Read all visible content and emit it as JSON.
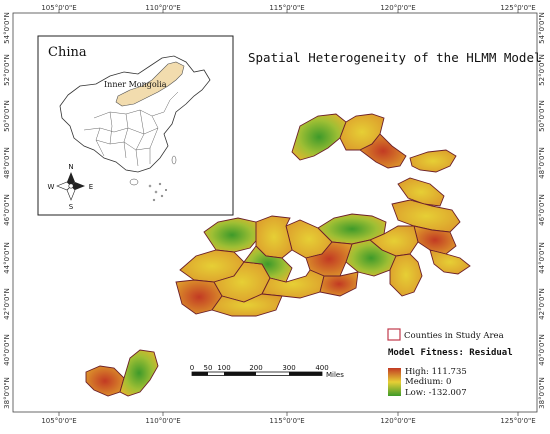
{
  "map": {
    "title": "Spatial Heterogeneity of the HLMM Model",
    "lon_ticks": [
      "105°0'0\"E",
      "110°0'0\"E",
      "115°0'0\"E",
      "120°0'0\"E",
      "125°0'0\"E"
    ],
    "lat_ticks": [
      "54°0'0\"N",
      "52°0'0\"N",
      "50°0'0\"N",
      "48°0'0\"N",
      "46°0'0\"N",
      "44°0'0\"N",
      "42°0'0\"N",
      "40°0'0\"N",
      "38°0'0\"N"
    ]
  },
  "inset": {
    "title": "China",
    "region_label": "Inner Mongolia",
    "highlight_color": "#f2dcae",
    "north_arrow": {
      "n": "N",
      "s": "S",
      "e": "E",
      "w": "W"
    }
  },
  "legend": {
    "counties_label": "Counties in Study Area",
    "fitness_title": "Model Fitness: Residual",
    "high_label": "High: 111.735",
    "medium_label": "Medium: 0",
    "low_label": "Low: -132.007",
    "colors": {
      "high": "#c23a23",
      "medium": "#e6cf35",
      "low": "#3e9a2a",
      "county_outline": "#c0394b"
    }
  },
  "scale_bar": {
    "ticks": [
      "0",
      "50",
      "100",
      "200",
      "300",
      "400"
    ],
    "unit": "Miles"
  }
}
